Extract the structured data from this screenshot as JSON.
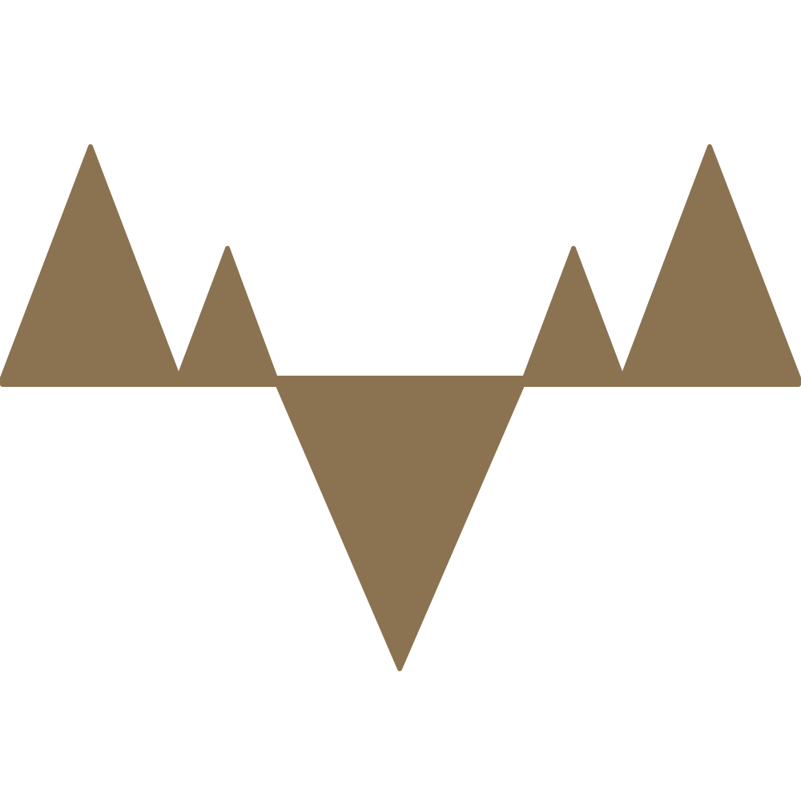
{
  "logo": {
    "icon": "mountain-valley-logo-icon",
    "colors": {
      "fill": "#8b7351",
      "background": "#ffffff"
    }
  }
}
